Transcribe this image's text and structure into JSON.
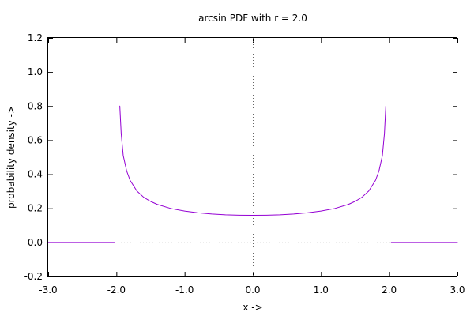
{
  "chart_data": {
    "type": "line",
    "title": "arcsin PDF with r = 2.0",
    "xlabel": "x ->",
    "ylabel": "probability density ->",
    "xlim": [
      -3.0,
      3.0
    ],
    "ylim": [
      -0.2,
      1.2
    ],
    "x_ticks": [
      -3.0,
      -2.0,
      -1.0,
      0.0,
      1.0,
      2.0,
      3.0
    ],
    "y_ticks": [
      -0.2,
      0.0,
      0.2,
      0.4,
      0.6,
      0.8,
      1.0,
      1.2
    ],
    "x_tick_labels": [
      "-3.0",
      "-2.0",
      "-1.0",
      "0.0",
      "1.0",
      "2.0",
      "3.0"
    ],
    "y_tick_labels": [
      "-0.2",
      "0.0",
      "0.2",
      "0.4",
      "0.6",
      "0.8",
      "1.0",
      "1.2"
    ],
    "grid": false,
    "zero_axes": true,
    "series": [
      {
        "color": "#9400d3",
        "segments": [
          [
            [
              -3.0,
              0.0
            ],
            [
              -2.03,
              0.0
            ]
          ],
          [
            [
              -1.95,
              0.8
            ],
            [
              -1.93,
              0.64
            ],
            [
              -1.9,
              0.51
            ],
            [
              -1.85,
              0.42
            ],
            [
              -1.8,
              0.365
            ],
            [
              -1.7,
              0.302
            ],
            [
              -1.6,
              0.265
            ],
            [
              -1.5,
              0.241
            ],
            [
              -1.4,
              0.223
            ],
            [
              -1.2,
              0.199
            ],
            [
              -1.0,
              0.184
            ],
            [
              -0.8,
              0.174
            ],
            [
              -0.6,
              0.167
            ],
            [
              -0.4,
              0.162
            ],
            [
              -0.2,
              0.16
            ],
            [
              0.0,
              0.159
            ],
            [
              0.2,
              0.16
            ],
            [
              0.4,
              0.162
            ],
            [
              0.6,
              0.167
            ],
            [
              0.8,
              0.174
            ],
            [
              1.0,
              0.184
            ],
            [
              1.2,
              0.199
            ],
            [
              1.4,
              0.223
            ],
            [
              1.5,
              0.241
            ],
            [
              1.6,
              0.265
            ],
            [
              1.7,
              0.302
            ],
            [
              1.8,
              0.365
            ],
            [
              1.85,
              0.42
            ],
            [
              1.9,
              0.51
            ],
            [
              1.93,
              0.64
            ],
            [
              1.95,
              0.8
            ]
          ],
          [
            [
              2.03,
              0.0
            ],
            [
              3.0,
              0.0
            ]
          ]
        ]
      }
    ]
  }
}
